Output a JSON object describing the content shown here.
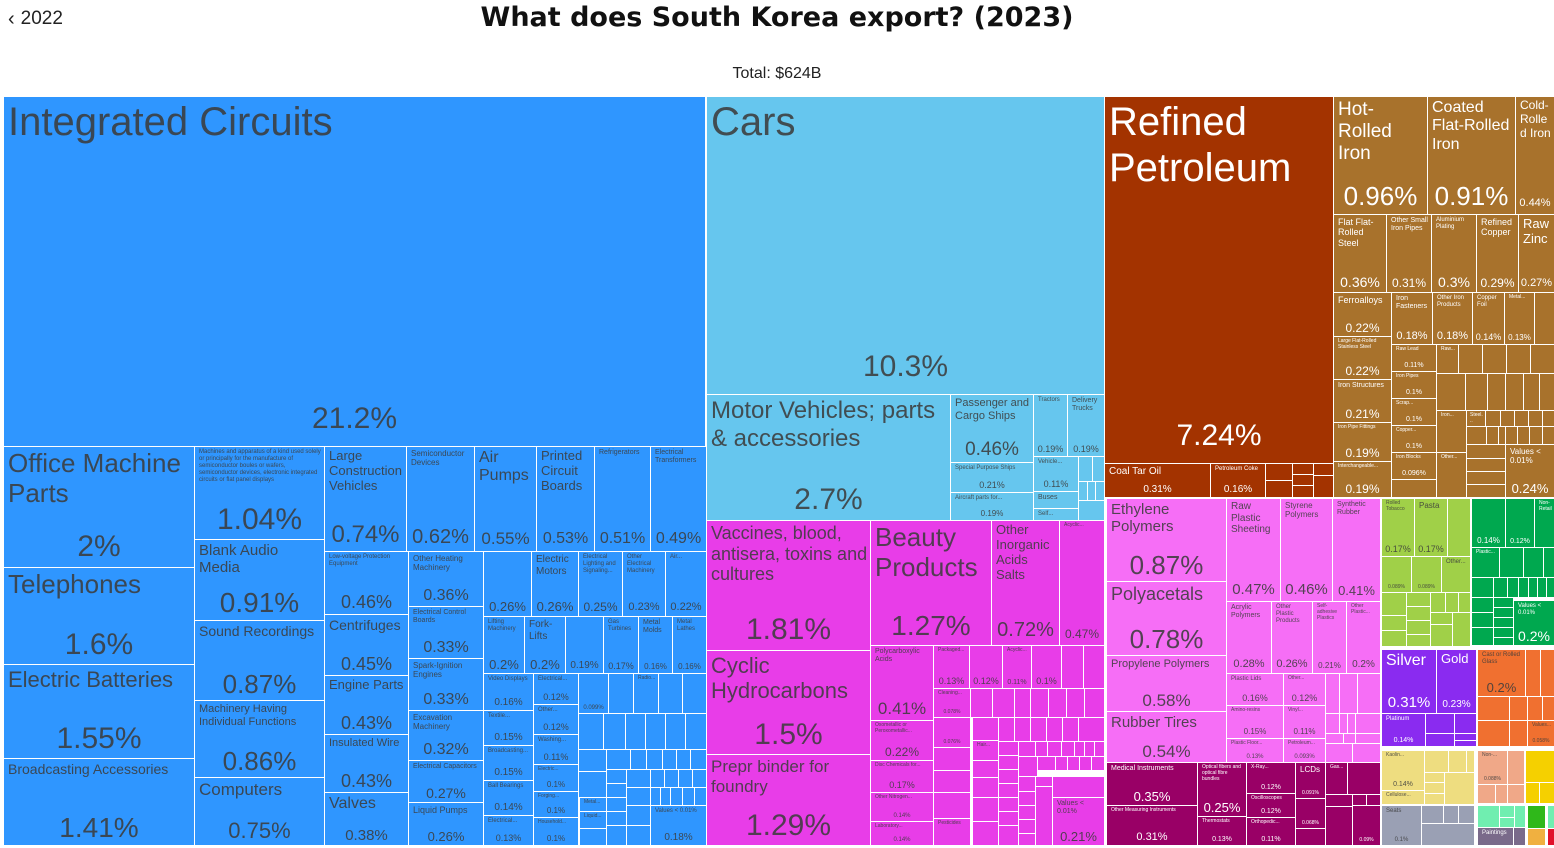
{
  "header": {
    "back_label": "2022",
    "title": "What does South Korea export? (2023)",
    "total": "Total: $624B"
  },
  "sector_colors": [
    "#2f96ff",
    "#66c6ee",
    "#a33300",
    "#a8722c",
    "#e83de8",
    "#f66ef6",
    "#990066",
    "#a0d048",
    "#00a84f",
    "#8a2bf0",
    "#f07030",
    "#eedd80",
    "#f0a888",
    "#f5d000",
    "#9aa0b4",
    "#70eeb0",
    "#7a6a8a",
    "#2fb81a",
    "#f0b040",
    "#e0102a"
  ],
  "sector_text_light": [
    false,
    false,
    true,
    true,
    false,
    false,
    true,
    false,
    true,
    true,
    false,
    false,
    false,
    false,
    false,
    false,
    true,
    true,
    false,
    true
  ],
  "chart_data": {
    "type": "treemap",
    "title": "What does South Korea export? (2023)",
    "total": "$624B",
    "tiles": [
      {
        "s": 0,
        "label": "Integrated Circuits",
        "value": "21.2%"
      },
      {
        "s": 0,
        "label": "Office Machine Parts",
        "value": "2%"
      },
      {
        "s": 0,
        "label": "Telephones",
        "value": "1.6%"
      },
      {
        "s": 0,
        "label": "Electric Batteries",
        "value": "1.55%"
      },
      {
        "s": 0,
        "label": "Broadcasting Accessories",
        "value": "1.41%"
      },
      {
        "s": 0,
        "label": "Machines and apparatus of a kind used solely or principally for the manufacture of semiconductor boules or wafers, semiconductor devices, electronic integrated circuits or flat panel displays",
        "value": "1.04%"
      },
      {
        "s": 0,
        "label": "Blank Audio Media",
        "value": "0.91%"
      },
      {
        "s": 0,
        "label": "Sound Recordings",
        "value": "0.87%"
      },
      {
        "s": 0,
        "label": "Machinery Having Individual Functions",
        "value": "0.86%"
      },
      {
        "s": 0,
        "label": "Computers",
        "value": "0.75%"
      },
      {
        "s": 0,
        "label": "Large Construction Vehicles",
        "value": "0.74%"
      },
      {
        "s": 0,
        "label": "Semiconductor Devices",
        "value": "0.62%"
      },
      {
        "s": 0,
        "label": "Air Pumps",
        "value": "0.55%"
      },
      {
        "s": 0,
        "label": "Printed Circuit Boards",
        "value": "0.53%"
      },
      {
        "s": 0,
        "label": "Refrigerators",
        "value": "0.51%"
      },
      {
        "s": 0,
        "label": "Electrical Transformers",
        "value": "0.49%"
      },
      {
        "s": 0,
        "label": "Low-voltage Protection Equipment",
        "value": "0.46%"
      },
      {
        "s": 0,
        "label": "Other Heating Machinery",
        "value": "0.36%"
      },
      {
        "s": 0,
        "value": "0.26%"
      },
      {
        "s": 0,
        "label": "Electric Motors",
        "value": "0.26%"
      },
      {
        "s": 0,
        "label": "Electrical Lighting and Signaling...",
        "value": "0.25%"
      },
      {
        "s": 0,
        "label": "Other Electrical Machinery",
        "value": "0.23%"
      },
      {
        "s": 0,
        "label": "Air...",
        "value": "0.22%"
      },
      {
        "s": 0,
        "label": "Electrical Control Boards",
        "value": "0.33%"
      },
      {
        "s": 0,
        "label": "Spark-Ignition Engines",
        "value": "0.33%"
      },
      {
        "s": 0,
        "label": "Excavation Machinery",
        "value": "0.32%"
      },
      {
        "s": 0,
        "label": "Electrical Capacitors",
        "value": "0.27%"
      },
      {
        "s": 0,
        "label": "Liquid Pumps",
        "value": "0.26%"
      },
      {
        "s": 0,
        "label": "Centrifuges",
        "value": "0.45%"
      },
      {
        "s": 0,
        "label": "Engine Parts",
        "value": "0.43%"
      },
      {
        "s": 0,
        "label": "Insulated Wire",
        "value": "0.43%"
      },
      {
        "s": 0,
        "label": "Valves",
        "value": "0.38%"
      },
      {
        "s": 0,
        "label": "Lifting Machinery",
        "value": "0.2%"
      },
      {
        "s": 0,
        "label": "Fork-Lifts",
        "value": "0.2%"
      },
      {
        "s": 0,
        "value": "0.19%"
      },
      {
        "s": 0,
        "label": "Gas Turbines",
        "value": "0.17%"
      },
      {
        "s": 0,
        "label": "Metal Molds",
        "value": "0.16%"
      },
      {
        "s": 0,
        "label": "Metal Lathes",
        "value": "0.16%"
      },
      {
        "s": 0,
        "label": "Video Displays",
        "value": "0.16%"
      },
      {
        "s": 0,
        "label": "Textile...",
        "value": "0.15%"
      },
      {
        "s": 0,
        "label": "Broadcasting...",
        "value": "0.15%"
      },
      {
        "s": 0,
        "label": "Ball Bearings",
        "value": "0.14%"
      },
      {
        "s": 0,
        "label": "Electrical...",
        "value": "0.13%"
      },
      {
        "s": 0,
        "label": "Electrical...",
        "value": "0.12%"
      },
      {
        "s": 0,
        "label": "Other...",
        "value": "0.12%"
      },
      {
        "s": 0,
        "label": "Washing...",
        "value": "0.11%"
      },
      {
        "s": 0,
        "label": "Electric...",
        "value": "0.1%"
      },
      {
        "s": 0,
        "label": "Forging...",
        "value": "0.1%"
      },
      {
        "s": 0,
        "label": "Household...",
        "value": "0.1%"
      },
      {
        "s": 0,
        "value": "0.099%"
      },
      {
        "s": 0,
        "label": "Radio..."
      },
      {
        "s": 0,
        "label": "Metal..."
      },
      {
        "s": 0,
        "label": "Liquid..."
      },
      {
        "s": 0,
        "label": "Values < 0.01%",
        "value": "0.18%"
      },
      {
        "s": 1,
        "label": "Cars",
        "value": "10.3%"
      },
      {
        "s": 1,
        "label": "Motor Vehicles; parts & accessories",
        "value": "2.7%"
      },
      {
        "s": 1,
        "label": "Passenger and Cargo Ships",
        "value": "0.46%"
      },
      {
        "s": 1,
        "label": "Tractors",
        "value": "0.19%"
      },
      {
        "s": 1,
        "label": "Delivery Trucks",
        "value": "0.19%"
      },
      {
        "s": 1,
        "label": "Special Purpose Ships",
        "value": "0.21%"
      },
      {
        "s": 1,
        "label": "Aircraft parts for...",
        "value": "0.19%"
      },
      {
        "s": 1,
        "label": "Vehicle...",
        "value": "0.11%"
      },
      {
        "s": 1,
        "label": "Buses"
      },
      {
        "s": 1,
        "label": "Self..."
      },
      {
        "s": 2,
        "label": "Refined Petroleum",
        "value": "7.24%"
      },
      {
        "s": 2,
        "label": "Coal Tar Oil",
        "value": "0.31%"
      },
      {
        "s": 2,
        "label": "Petroleum Coke",
        "value": "0.16%"
      },
      {
        "s": 3,
        "label": "Hot-Rolled Iron",
        "value": "0.96%"
      },
      {
        "s": 3,
        "label": "Coated Flat-Rolled Iron",
        "value": "0.91%"
      },
      {
        "s": 3,
        "label": "Cold-Rolled Iron",
        "value": "0.44%"
      },
      {
        "s": 3,
        "label": "Flat Flat-Rolled Steel",
        "value": "0.36%"
      },
      {
        "s": 3,
        "label": "Other Small Iron Pipes",
        "value": "0.31%"
      },
      {
        "s": 3,
        "label": "Aluminium Plating",
        "value": "0.3%"
      },
      {
        "s": 3,
        "label": "Refined Copper",
        "value": "0.29%"
      },
      {
        "s": 3,
        "label": "Raw Zinc",
        "value": "0.27%"
      },
      {
        "s": 3,
        "label": "Ferroalloys",
        "value": "0.22%"
      },
      {
        "s": 3,
        "label": "Iron Fasteners",
        "value": "0.18%"
      },
      {
        "s": 3,
        "label": "Other Iron Products",
        "value": "0.18%"
      },
      {
        "s": 3,
        "label": "Copper Foil",
        "value": "0.14%"
      },
      {
        "s": 3,
        "label": "Metal...",
        "value": "0.13%"
      },
      {
        "s": 3,
        "label": "Large Flat-Rolled Stainless Steel",
        "value": "0.22%"
      },
      {
        "s": 3,
        "label": "Iron Structures",
        "value": "0.21%"
      },
      {
        "s": 3,
        "label": "Iron Pipe Fittings",
        "value": "0.19%"
      },
      {
        "s": 3,
        "label": "Interchangeable...",
        "value": "0.19%"
      },
      {
        "s": 3,
        "label": "Raw Lead",
        "value": "0.11%"
      },
      {
        "s": 3,
        "label": "Iron Pipes",
        "value": "0.1%"
      },
      {
        "s": 3,
        "label": "Scrap...",
        "value": "0.1%"
      },
      {
        "s": 3,
        "label": "Copper...",
        "value": "0.1%"
      },
      {
        "s": 3,
        "label": "Iron Blocks",
        "value": "0.096%"
      },
      {
        "s": 3,
        "label": "Raw..."
      },
      {
        "s": 3,
        "label": "Steel..."
      },
      {
        "s": 3,
        "label": "Iron..."
      },
      {
        "s": 3,
        "label": "Other..."
      },
      {
        "s": 3,
        "label": "Values < 0.01%",
        "value": "0.24%"
      },
      {
        "s": 4,
        "label": "Vaccines, blood, antisera, toxins and cultures",
        "value": "1.81%"
      },
      {
        "s": 4,
        "label": "Cyclic Hydrocarbons",
        "value": "1.5%"
      },
      {
        "s": 4,
        "label": "Prepr binder for foundry",
        "value": "1.29%"
      },
      {
        "s": 4,
        "label": "Beauty Products",
        "value": "1.27%"
      },
      {
        "s": 4,
        "label": "Other Inorganic Acids Salts",
        "value": "0.72%"
      },
      {
        "s": 4,
        "label": "Acyclic...",
        "value": "0.47%"
      },
      {
        "s": 4,
        "label": "Polycarboxylic Acids",
        "value": "0.41%"
      },
      {
        "s": 4,
        "label": "Oxometallic or Peroxometallic...",
        "value": "0.22%"
      },
      {
        "s": 4,
        "label": "Disc Chemicals for...",
        "value": "0.17%"
      },
      {
        "s": 4,
        "label": "Other Nitrogen...",
        "value": "0.14%"
      },
      {
        "s": 4,
        "label": "Laboratory...",
        "value": "0.14%"
      },
      {
        "s": 4,
        "label": "Packaged...",
        "value": "0.13%"
      },
      {
        "s": 4,
        "value": "0.12%"
      },
      {
        "s": 4,
        "label": "Acyclic...",
        "value": "0.11%"
      },
      {
        "s": 4,
        "value": "0.1%"
      },
      {
        "s": 4,
        "label": "Cleaning...",
        "value": "0.078%"
      },
      {
        "s": 4,
        "value": "0.076%"
      },
      {
        "s": 4,
        "label": "Hair..."
      },
      {
        "s": 4,
        "label": "Pesticides"
      },
      {
        "s": 4,
        "label": "Values < 0.01%",
        "value": "0.21%"
      },
      {
        "s": 5,
        "label": "Ethylene Polymers",
        "value": "0.87%"
      },
      {
        "s": 5,
        "label": "Polyacetals",
        "value": "0.78%"
      },
      {
        "s": 5,
        "label": "Propylene Polymers",
        "value": "0.58%"
      },
      {
        "s": 5,
        "label": "Rubber Tires",
        "value": "0.54%"
      },
      {
        "s": 5,
        "label": "Raw Plastic Sheeting",
        "value": "0.47%"
      },
      {
        "s": 5,
        "label": "Styrene Polymers",
        "value": "0.46%"
      },
      {
        "s": 5,
        "label": "Synthetic Rubber",
        "value": "0.41%"
      },
      {
        "s": 5,
        "label": "Acrylic Polymers",
        "value": "0.28%"
      },
      {
        "s": 5,
        "label": "Other Plastic Products",
        "value": "0.26%"
      },
      {
        "s": 5,
        "label": "Self-adhesive Plastics",
        "value": "0.21%"
      },
      {
        "s": 5,
        "label": "Other Plastic...",
        "value": "0.2%"
      },
      {
        "s": 5,
        "label": "Plastic Lids",
        "value": "0.16%"
      },
      {
        "s": 5,
        "label": "Other...",
        "value": "0.12%"
      },
      {
        "s": 5,
        "label": "Amino-resins",
        "value": "0.15%"
      },
      {
        "s": 5,
        "label": "Vinyl...",
        "value": "0.11%"
      },
      {
        "s": 5,
        "label": "Plastic Floor...",
        "value": "0.13%"
      },
      {
        "s": 5,
        "label": "Petroleum...",
        "value": "0.093%"
      },
      {
        "s": 6,
        "label": "Medical Instruments",
        "value": "0.35%"
      },
      {
        "s": 6,
        "label": "Other Measuring Instruments",
        "value": "0.31%"
      },
      {
        "s": 6,
        "label": "Optical fibers and optical fibre bundles",
        "value": "0.25%"
      },
      {
        "s": 6,
        "label": "Thermostats",
        "value": "0.13%"
      },
      {
        "s": 6,
        "label": "X-Ray...",
        "value": "0.12%"
      },
      {
        "s": 6,
        "label": "Oscilloscopes",
        "value": "0.12%"
      },
      {
        "s": 6,
        "label": "Orthopedic...",
        "value": "0.11%"
      },
      {
        "s": 6,
        "label": "LCDs",
        "value": "0.091%"
      },
      {
        "s": 6,
        "value": "0.068%"
      },
      {
        "s": 6,
        "label": "Gas..."
      },
      {
        "s": 6,
        "value": "0.09%"
      },
      {
        "s": 7,
        "label": "Rolled Tobacco",
        "value": "0.17%"
      },
      {
        "s": 7,
        "label": "Pasta",
        "value": "0.17%"
      },
      {
        "s": 7,
        "value": "0.089%"
      },
      {
        "s": 7,
        "value": "0.089%"
      },
      {
        "s": 7,
        "label": "Other..."
      },
      {
        "s": 8,
        "value": "0.14%"
      },
      {
        "s": 8,
        "value": "0.12%"
      },
      {
        "s": 8,
        "label": "Non-Retail"
      },
      {
        "s": 8,
        "label": "Plastic..."
      },
      {
        "s": 8,
        "label": "Values < 0.01%",
        "value": "0.2%"
      },
      {
        "s": 9,
        "label": "Silver",
        "value": "0.31%"
      },
      {
        "s": 9,
        "label": "Gold",
        "value": "0.23%"
      },
      {
        "s": 9,
        "label": "Platinum",
        "value": "0.14%"
      },
      {
        "s": 10,
        "label": "Cast or Rolled Glass",
        "value": "0.2%"
      },
      {
        "s": 10,
        "label": "Values...",
        "value": "0.058%"
      },
      {
        "s": 11,
        "label": "Kaolin...",
        "value": "0.14%"
      },
      {
        "s": 11,
        "label": "Cellulose..."
      },
      {
        "s": 12,
        "label": "Non-...",
        "value": "0.088%"
      },
      {
        "s": 14,
        "label": "Seats",
        "value": "0.1%"
      },
      {
        "s": 16,
        "label": "Paintings"
      }
    ]
  }
}
